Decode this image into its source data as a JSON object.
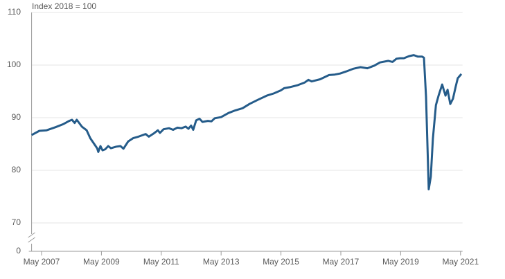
{
  "chart_data": {
    "type": "line",
    "subtitle": "Index 2018 = 100",
    "x": [
      2007.0,
      2007.26,
      2007.5,
      2007.8,
      2008.07,
      2008.26,
      2008.35,
      2008.44,
      2008.51,
      2008.68,
      2008.84,
      2008.96,
      2009.07,
      2009.19,
      2009.23,
      2009.3,
      2009.37,
      2009.46,
      2009.56,
      2009.65,
      2009.83,
      2009.97,
      2010.07,
      2010.23,
      2010.39,
      2010.57,
      2010.81,
      2010.92,
      2011.08,
      2011.22,
      2011.29,
      2011.41,
      2011.59,
      2011.73,
      2011.87,
      2012.01,
      2012.15,
      2012.24,
      2012.33,
      2012.4,
      2012.5,
      2012.61,
      2012.71,
      2012.89,
      2013.01,
      2013.12,
      2013.33,
      2013.58,
      2013.81,
      2014.05,
      2014.28,
      2014.56,
      2014.86,
      2015.09,
      2015.33,
      2015.44,
      2015.63,
      2015.9,
      2016.13,
      2016.25,
      2016.36,
      2016.64,
      2016.94,
      2017.13,
      2017.31,
      2017.52,
      2017.75,
      2017.99,
      2018.22,
      2018.45,
      2018.64,
      2018.92,
      2019.06,
      2019.19,
      2019.31,
      2019.44,
      2019.61,
      2019.77,
      2019.91,
      2020.05,
      2020.11,
      2020.18,
      2020.27,
      2020.34,
      2020.41,
      2020.51,
      2020.6,
      2020.72,
      2020.83,
      2020.9,
      2020.99,
      2021.08,
      2021.17,
      2021.24,
      2021.36
    ],
    "series": [
      {
        "color": "#255c8a",
        "values": [
          86.7,
          87.5,
          87.6,
          88.2,
          88.8,
          89.4,
          89.6,
          89.0,
          89.6,
          88.3,
          87.6,
          86.1,
          85.2,
          84.2,
          83.5,
          84.6,
          83.8,
          84.0,
          84.6,
          84.2,
          84.5,
          84.6,
          84.1,
          85.5,
          86.1,
          86.4,
          86.9,
          86.4,
          87.0,
          87.6,
          87.1,
          87.8,
          88.0,
          87.7,
          88.1,
          88.0,
          88.3,
          87.9,
          88.5,
          87.7,
          89.5,
          89.8,
          89.2,
          89.4,
          89.3,
          89.9,
          90.1,
          90.9,
          91.4,
          91.8,
          92.6,
          93.4,
          94.2,
          94.6,
          95.2,
          95.6,
          95.8,
          96.2,
          96.7,
          97.2,
          96.9,
          97.3,
          98.1,
          98.2,
          98.4,
          98.8,
          99.3,
          99.6,
          99.4,
          99.9,
          100.5,
          100.8,
          100.6,
          101.2,
          101.3,
          101.3,
          101.7,
          101.9,
          101.6,
          101.6,
          101.4,
          94.0,
          76.4,
          78.8,
          86.0,
          92.4,
          94.2,
          96.3,
          94.2,
          95.3,
          92.6,
          93.6,
          95.9,
          97.5,
          98.3
        ]
      }
    ],
    "xlim": [
      2007.0,
      2021.4
    ],
    "xticks": [
      {
        "value": 2007.333,
        "label": "May 2007"
      },
      {
        "value": 2009.333,
        "label": "May 2009"
      },
      {
        "value": 2011.333,
        "label": "May 2011"
      },
      {
        "value": 2013.333,
        "label": "May 2013"
      },
      {
        "value": 2015.333,
        "label": "May 2015"
      },
      {
        "value": 2017.333,
        "label": "May 2017"
      },
      {
        "value": 2019.333,
        "label": "May 2019"
      },
      {
        "value": 2021.333,
        "label": "May 2021"
      }
    ],
    "ylim": [
      65,
      110
    ],
    "yticks": [
      0,
      70,
      80,
      90,
      100,
      110
    ],
    "axis_break": true,
    "grid": true
  }
}
